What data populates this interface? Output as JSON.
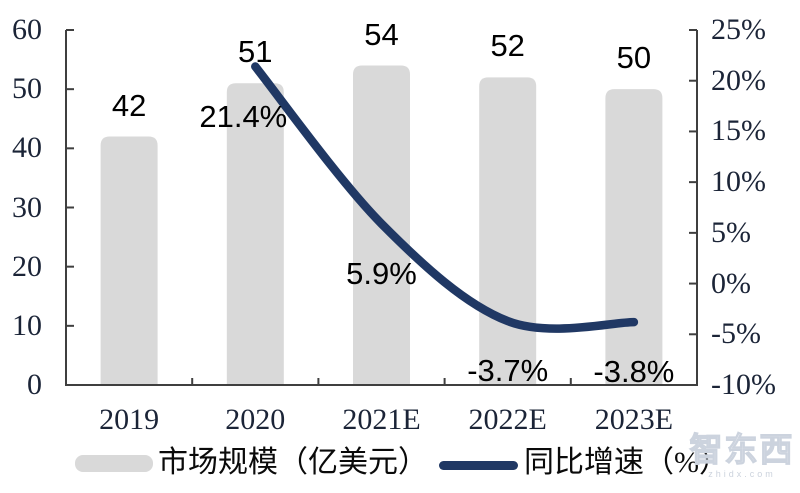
{
  "chart_data": {
    "type": "bar",
    "subtype": "bar-line-combo",
    "categories": [
      "2019",
      "2020",
      "2021E",
      "2022E",
      "2023E"
    ],
    "series": [
      {
        "name": "市场规模（亿美元）",
        "type": "bar",
        "axis": "left",
        "values": [
          42,
          51,
          54,
          52,
          50
        ],
        "labels": [
          "42",
          "51",
          "54",
          "52",
          "50"
        ],
        "color": "#D9D9D9"
      },
      {
        "name": "同比增速（%）",
        "type": "line",
        "axis": "right",
        "values": [
          null,
          21.4,
          5.9,
          -3.7,
          -3.8
        ],
        "labels": [
          "",
          "21.4%",
          "5.9%",
          "-3.7%",
          "-3.8%"
        ],
        "color": "#203864"
      }
    ],
    "left_axis": {
      "min": 0,
      "max": 60,
      "step": 10,
      "ticks": [
        "0",
        "10",
        "20",
        "30",
        "40",
        "50",
        "60"
      ],
      "tick_values": [
        0,
        10,
        20,
        30,
        40,
        50,
        60
      ]
    },
    "right_axis": {
      "min": -10,
      "max": 25,
      "step": 5,
      "ticks": [
        "-10%",
        "-5%",
        "0%",
        "5%",
        "10%",
        "15%",
        "20%",
        "25%"
      ],
      "tick_values": [
        -10,
        -5,
        0,
        5,
        10,
        15,
        20,
        25
      ]
    },
    "grid": false,
    "legend_position": "bottom",
    "title": ""
  },
  "legend": {
    "bar_label": "市场规模（亿美元）",
    "line_label": "同比增速（%）"
  },
  "watermark": {
    "text": "智东西",
    "subtext": "zhidx.com"
  },
  "colors": {
    "bar": "#D9D9D9",
    "line": "#203864",
    "axis": "#3f3f3f",
    "tick_label": "#1b2437",
    "data_label": "#000000"
  }
}
